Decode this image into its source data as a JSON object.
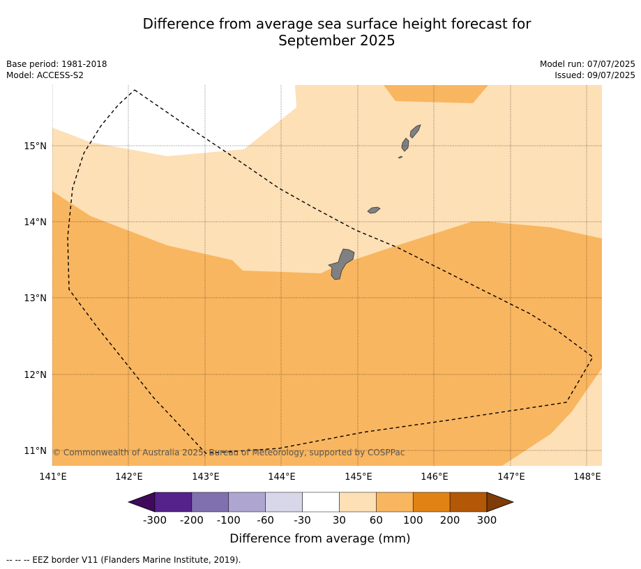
{
  "title_line1": "Difference from average sea surface height forecast for",
  "title_line2": "September 2025",
  "meta_left": {
    "base_period": "Base period: 1981-2018",
    "model": "Model: ACCESS-S2"
  },
  "meta_right": {
    "model_run": "Model run: 07/07/2025",
    "issued": "Issued: 09/07/2025"
  },
  "map": {
    "lat_labels": [
      "15°N",
      "14°N",
      "13°N",
      "12°N",
      "11°N"
    ],
    "lon_labels": [
      "141°E",
      "142°E",
      "143°E",
      "144°E",
      "145°E",
      "146°E",
      "147°E",
      "148°E"
    ],
    "copyright": "© Commonwealth of Australia 2025, Bureau of Meteorology, supported by COSPPac"
  },
  "colorbar": {
    "ticks": [
      "-300",
      "-200",
      "-100",
      "-60",
      "-30",
      "30",
      "60",
      "100",
      "200",
      "300"
    ],
    "colors": [
      "#3f0a5b",
      "#54228a",
      "#8070b0",
      "#aea6d1",
      "#d8d7ea",
      "#ffffff",
      "#fde0b6",
      "#f9b660",
      "#e08214",
      "#b35806",
      "#7f3b08"
    ],
    "label": "Difference from average (mm)"
  },
  "footer": {
    "legend_text": "--  --  -- EEZ border V11 (Flanders Marine Institute, 2019)."
  }
}
